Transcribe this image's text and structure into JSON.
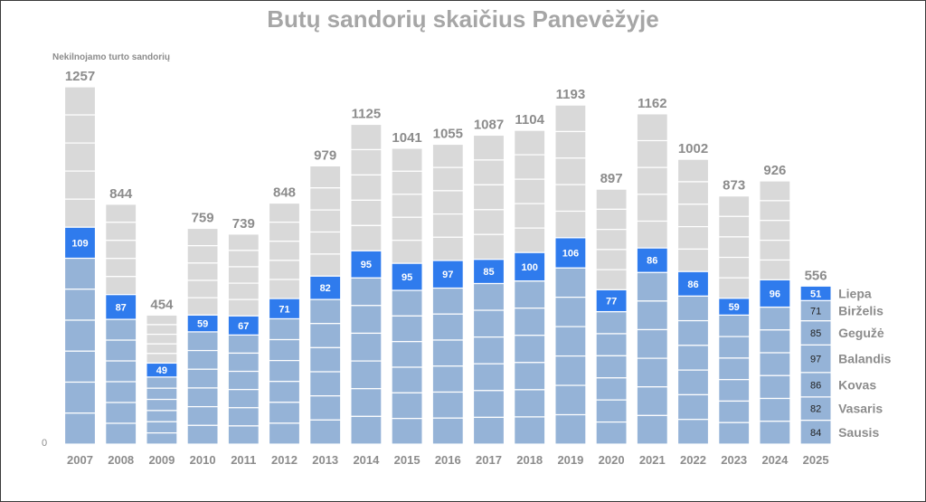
{
  "chart_data": {
    "type": "bar",
    "title": "Butų sandorių skaičius Panevėžyje",
    "ylabel": "Nekilnojamo turto sandorių",
    "y_zero_label": "0",
    "ylim": [
      0,
      1257
    ],
    "categories": [
      "2007",
      "2008",
      "2009",
      "2010",
      "2011",
      "2012",
      "2013",
      "2014",
      "2015",
      "2016",
      "2017",
      "2018",
      "2019",
      "2020",
      "2021",
      "2022",
      "2023",
      "2024"
    ],
    "totals": [
      1257,
      844,
      454,
      759,
      739,
      848,
      979,
      1125,
      1041,
      1055,
      1087,
      1104,
      1193,
      897,
      1162,
      1002,
      873,
      926
    ],
    "july_values": [
      109,
      87,
      49,
      59,
      67,
      71,
      82,
      95,
      95,
      97,
      85,
      100,
      106,
      77,
      86,
      86,
      59,
      96
    ],
    "current_year": {
      "year": "2025",
      "total": 556,
      "months": [
        {
          "name": "Sausis",
          "value": 84
        },
        {
          "name": "Vasaris",
          "value": 82
        },
        {
          "name": "Kovas",
          "value": 86
        },
        {
          "name": "Balandis",
          "value": 97
        },
        {
          "name": "Gegužė",
          "value": 85
        },
        {
          "name": "Birželis",
          "value": 71
        },
        {
          "name": "Liepa",
          "value": 51
        }
      ]
    },
    "colors": {
      "previous_months": "#95b3d7",
      "july": "#2f7bed",
      "remaining_months": "#d9d9d9",
      "segment_divider": "#ffffff"
    },
    "grid": false,
    "legend": "none"
  }
}
